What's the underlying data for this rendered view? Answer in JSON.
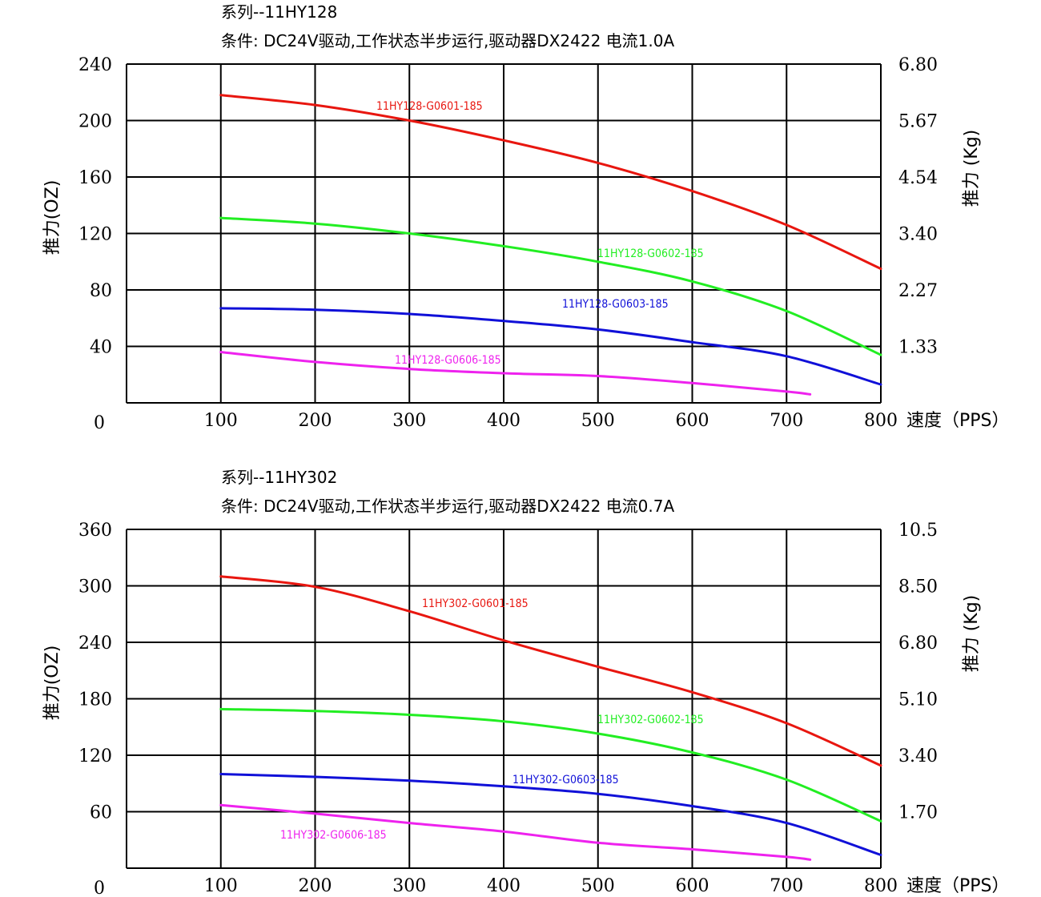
{
  "chart_data": [
    {
      "type": "line",
      "series_title": "系列--11HY128",
      "conditions": "条件: DC24V驱动,工作状态半步运行,驱动器DX2422 电流1.0A",
      "xlabel": "速度（PPS）",
      "ylabel_left": "推力(OZ)",
      "ylabel_right": "推力 (Kg)",
      "xlim": [
        0,
        800
      ],
      "ylim": [
        0,
        240
      ],
      "x_ticks": [
        "100",
        "200",
        "300",
        "400",
        "500",
        "600",
        "700",
        "800"
      ],
      "origin_label": "0",
      "y_ticks_left": [
        "40",
        "80",
        "120",
        "160",
        "200",
        "240"
      ],
      "y_ticks_right": [
        "1.33",
        "2.27",
        "3.40",
        "4.54",
        "5.67",
        "6.80"
      ],
      "grid": true,
      "series": [
        {
          "name": "11HY128-G0601-185",
          "color": "#e8160f",
          "x": [
            100,
            200,
            300,
            400,
            500,
            600,
            700,
            800
          ],
          "y": [
            218,
            211,
            200,
            186,
            170,
            150,
            126,
            95
          ]
        },
        {
          "name": "11HY128-G0602-185",
          "color": "#22ee22",
          "x": [
            100,
            200,
            300,
            400,
            500,
            600,
            700,
            800
          ],
          "y": [
            131,
            127,
            120,
            111,
            100,
            86,
            65,
            34
          ]
        },
        {
          "name": "11HY128-G0603-185",
          "color": "#1010d8",
          "x": [
            100,
            200,
            300,
            400,
            500,
            600,
            700,
            800
          ],
          "y": [
            67,
            66,
            63,
            58,
            52,
            43,
            33,
            13
          ]
        },
        {
          "name": "11HY128-G0606-185",
          "color": "#ee22ee",
          "x": [
            100,
            200,
            300,
            400,
            500,
            600,
            700,
            725
          ],
          "y": [
            36,
            29,
            24,
            21,
            19,
            14,
            8,
            6
          ]
        }
      ]
    },
    {
      "type": "line",
      "series_title": "系列--11HY302",
      "conditions": "条件: DC24V驱动,工作状态半步运行,驱动器DX2422 电流0.7A",
      "xlabel": "速度（PPS）",
      "ylabel_left": "推力(OZ)",
      "ylabel_right": "推力 (Kg)",
      "xlim": [
        0,
        800
      ],
      "ylim": [
        0,
        360
      ],
      "x_ticks": [
        "100",
        "200",
        "300",
        "400",
        "500",
        "600",
        "700",
        "800"
      ],
      "origin_label": "0",
      "y_ticks_left": [
        "60",
        "120",
        "180",
        "240",
        "300",
        "360"
      ],
      "y_ticks_right": [
        "1.70",
        "3.40",
        "5.10",
        "6.80",
        "8.50",
        "10.5"
      ],
      "grid": true,
      "series": [
        {
          "name": "11HY302-G0601-185",
          "color": "#e8160f",
          "x": [
            100,
            200,
            300,
            400,
            500,
            600,
            700,
            800
          ],
          "y": [
            310,
            299,
            273,
            242,
            214,
            187,
            154,
            109
          ]
        },
        {
          "name": "11HY302-G0602-185",
          "color": "#22ee22",
          "x": [
            100,
            200,
            300,
            400,
            500,
            600,
            700,
            800
          ],
          "y": [
            169,
            167,
            163,
            156,
            143,
            123,
            94,
            50
          ]
        },
        {
          "name": "11HY302-G0603-185",
          "color": "#1010d8",
          "x": [
            100,
            200,
            300,
            400,
            500,
            600,
            700,
            800
          ],
          "y": [
            100,
            97,
            93,
            87,
            79,
            66,
            48,
            14
          ]
        },
        {
          "name": "11HY302-G0606-185",
          "color": "#ee22ee",
          "x": [
            100,
            200,
            300,
            400,
            500,
            600,
            700,
            725
          ],
          "y": [
            67,
            58,
            48,
            39,
            27,
            20,
            12,
            9
          ]
        }
      ]
    }
  ]
}
